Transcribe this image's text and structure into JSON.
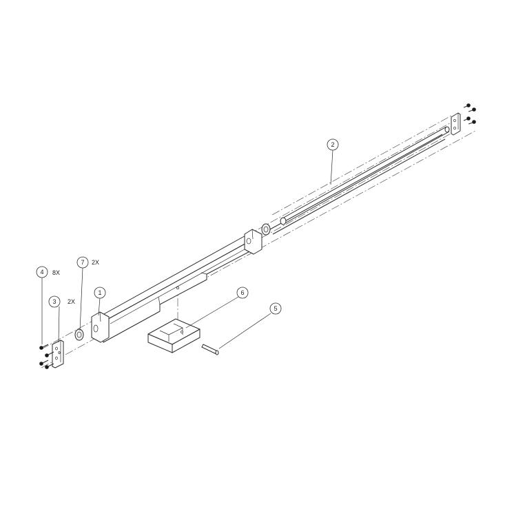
{
  "callouts": [
    {
      "number": "1"
    },
    {
      "number": "2"
    },
    {
      "number": "3",
      "qty": "2X"
    },
    {
      "number": "4",
      "qty": "8X"
    },
    {
      "number": "5"
    },
    {
      "number": "6"
    },
    {
      "number": "7",
      "qty": "2X"
    }
  ]
}
